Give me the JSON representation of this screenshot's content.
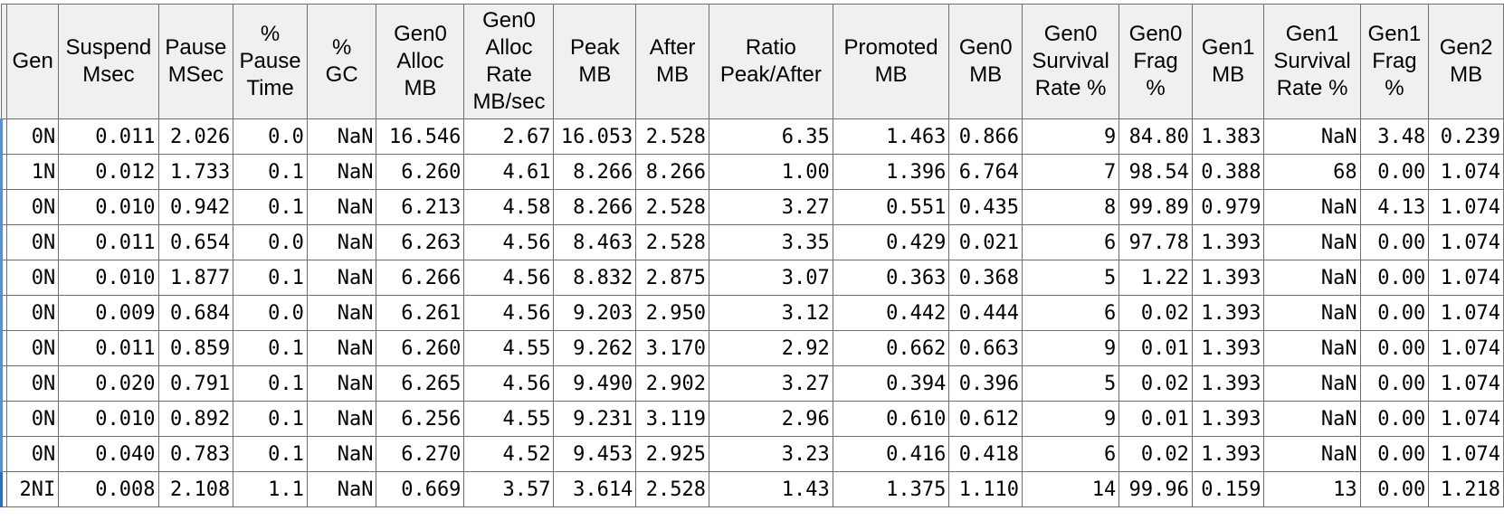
{
  "table": {
    "columns": [
      {
        "key": "gen",
        "lines": [
          "Gen"
        ]
      },
      {
        "key": "suspend",
        "lines": [
          "Suspend",
          "Msec"
        ]
      },
      {
        "key": "pause",
        "lines": [
          "Pause",
          "MSec"
        ]
      },
      {
        "key": "pct_pause",
        "lines": [
          "%",
          "Pause",
          "Time"
        ]
      },
      {
        "key": "pct_gc",
        "lines": [
          "%",
          "GC"
        ]
      },
      {
        "key": "gen0_alloc",
        "lines": [
          "Gen0",
          "Alloc",
          "MB"
        ]
      },
      {
        "key": "gen0_rate",
        "lines": [
          "Gen0",
          "Alloc",
          "Rate",
          "MB/sec"
        ]
      },
      {
        "key": "peak",
        "lines": [
          "Peak",
          "MB"
        ]
      },
      {
        "key": "after",
        "lines": [
          "After",
          "MB"
        ]
      },
      {
        "key": "ratio",
        "lines": [
          "Ratio",
          "Peak/After"
        ]
      },
      {
        "key": "promoted",
        "lines": [
          "Promoted",
          "MB"
        ]
      },
      {
        "key": "gen0_mb",
        "lines": [
          "Gen0",
          "MB"
        ]
      },
      {
        "key": "gen0_surv",
        "lines": [
          "Gen0",
          "Survival",
          "Rate %"
        ]
      },
      {
        "key": "gen0_frag",
        "lines": [
          "Gen0",
          "Frag",
          "%"
        ]
      },
      {
        "key": "gen1_mb",
        "lines": [
          "Gen1",
          "MB"
        ]
      },
      {
        "key": "gen1_surv",
        "lines": [
          "Gen1",
          "Survival",
          "Rate %"
        ]
      },
      {
        "key": "gen1_frag",
        "lines": [
          "Gen1",
          "Frag",
          "%"
        ]
      },
      {
        "key": "gen2_mb",
        "lines": [
          "Gen2",
          "MB"
        ]
      }
    ],
    "rows": [
      [
        "0N",
        "0.011",
        "2.026",
        "0.0",
        "NaN",
        "16.546",
        "2.67",
        "16.053",
        "2.528",
        "6.35",
        "1.463",
        "0.866",
        "9",
        "84.80",
        "1.383",
        "NaN",
        "3.48",
        "0.239"
      ],
      [
        "1N",
        "0.012",
        "1.733",
        "0.1",
        "NaN",
        "6.260",
        "4.61",
        "8.266",
        "8.266",
        "1.00",
        "1.396",
        "6.764",
        "7",
        "98.54",
        "0.388",
        "68",
        "0.00",
        "1.074"
      ],
      [
        "0N",
        "0.010",
        "0.942",
        "0.1",
        "NaN",
        "6.213",
        "4.58",
        "8.266",
        "2.528",
        "3.27",
        "0.551",
        "0.435",
        "8",
        "99.89",
        "0.979",
        "NaN",
        "4.13",
        "1.074"
      ],
      [
        "0N",
        "0.011",
        "0.654",
        "0.0",
        "NaN",
        "6.263",
        "4.56",
        "8.463",
        "2.528",
        "3.35",
        "0.429",
        "0.021",
        "6",
        "97.78",
        "1.393",
        "NaN",
        "0.00",
        "1.074"
      ],
      [
        "0N",
        "0.010",
        "1.877",
        "0.1",
        "NaN",
        "6.266",
        "4.56",
        "8.832",
        "2.875",
        "3.07",
        "0.363",
        "0.368",
        "5",
        "1.22",
        "1.393",
        "NaN",
        "0.00",
        "1.074"
      ],
      [
        "0N",
        "0.009",
        "0.684",
        "0.0",
        "NaN",
        "6.261",
        "4.56",
        "9.203",
        "2.950",
        "3.12",
        "0.442",
        "0.444",
        "6",
        "0.02",
        "1.393",
        "NaN",
        "0.00",
        "1.074"
      ],
      [
        "0N",
        "0.011",
        "0.859",
        "0.1",
        "NaN",
        "6.260",
        "4.55",
        "9.262",
        "3.170",
        "2.92",
        "0.662",
        "0.663",
        "9",
        "0.01",
        "1.393",
        "NaN",
        "0.00",
        "1.074"
      ],
      [
        "0N",
        "0.020",
        "0.791",
        "0.1",
        "NaN",
        "6.265",
        "4.56",
        "9.490",
        "2.902",
        "3.27",
        "0.394",
        "0.396",
        "5",
        "0.02",
        "1.393",
        "NaN",
        "0.00",
        "1.074"
      ],
      [
        "0N",
        "0.010",
        "0.892",
        "0.1",
        "NaN",
        "6.256",
        "4.55",
        "9.231",
        "3.119",
        "2.96",
        "0.610",
        "0.612",
        "9",
        "0.01",
        "1.393",
        "NaN",
        "0.00",
        "1.074"
      ],
      [
        "0N",
        "0.040",
        "0.783",
        "0.1",
        "NaN",
        "6.270",
        "4.52",
        "9.453",
        "2.925",
        "3.23",
        "0.416",
        "0.418",
        "6",
        "0.02",
        "1.393",
        "NaN",
        "0.00",
        "1.074"
      ],
      [
        "2NI",
        "0.008",
        "2.108",
        "1.1",
        "NaN",
        "0.669",
        "3.57",
        "3.614",
        "2.528",
        "1.43",
        "1.375",
        "1.110",
        "14",
        "99.96",
        "0.159",
        "13",
        "0.00",
        "1.218"
      ]
    ]
  }
}
